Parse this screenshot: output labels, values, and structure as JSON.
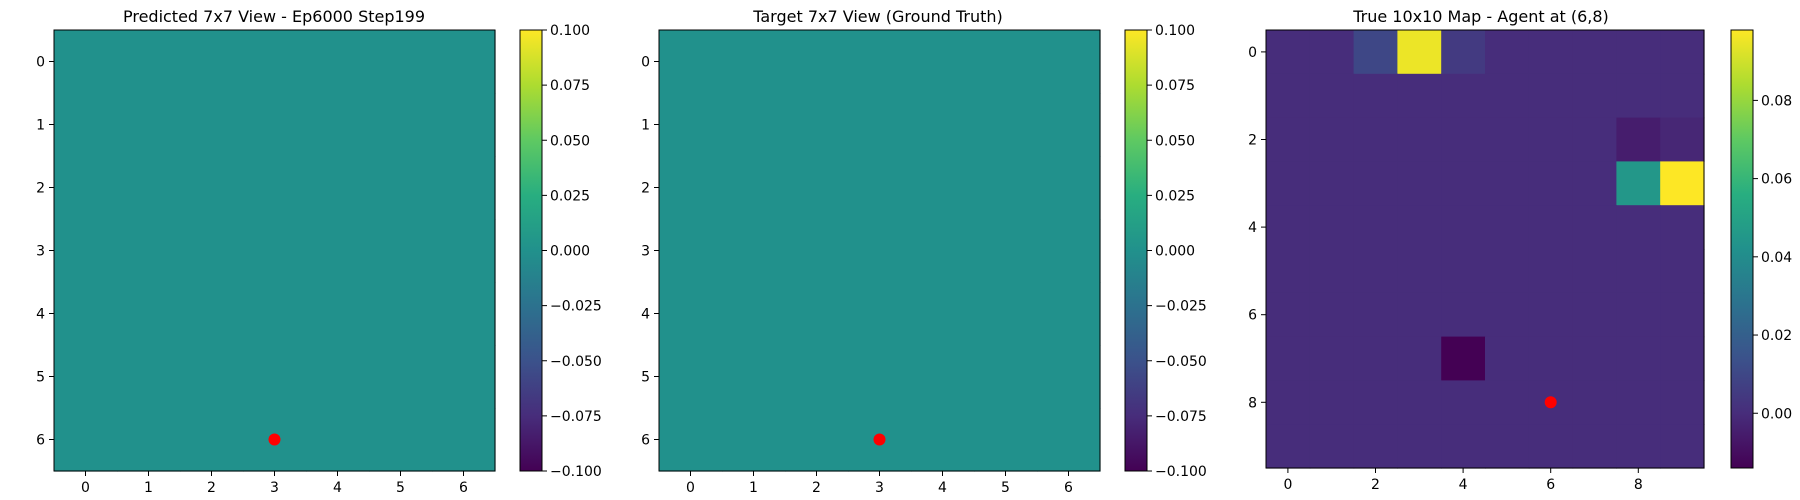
{
  "chart_data": [
    {
      "type": "heatmap",
      "title": "Predicted 7x7 View - Ep6000 Step199",
      "rows": 7,
      "cols": 7,
      "xticks": [
        0,
        1,
        2,
        3,
        4,
        5,
        6
      ],
      "yticks": [
        0,
        1,
        2,
        3,
        4,
        5,
        6
      ],
      "grid": [
        [
          0,
          0,
          0,
          0,
          0,
          0,
          0
        ],
        [
          0,
          0,
          0,
          0,
          0,
          0,
          0
        ],
        [
          0,
          0,
          0,
          0,
          0,
          0,
          0
        ],
        [
          0,
          0,
          0,
          0,
          0,
          0,
          0
        ],
        [
          0,
          0,
          0,
          0,
          0,
          0,
          0
        ],
        [
          0,
          0,
          0,
          0,
          0,
          0,
          0
        ],
        [
          0,
          0,
          0,
          0,
          0,
          0,
          0
        ]
      ],
      "vmin": -0.1,
      "vmax": 0.1,
      "colorbar_ticks": [
        0.1,
        0.075,
        0.05,
        0.025,
        0.0,
        -0.025,
        -0.05,
        -0.075,
        -0.1
      ],
      "colorbar_labels": [
        "0.100",
        "0.075",
        "0.050",
        "0.025",
        "0.000",
        "−0.025",
        "−0.050",
        "−0.075",
        "−0.100"
      ],
      "marker": {
        "x": 3,
        "y": 6,
        "color": "#ff0000"
      }
    },
    {
      "type": "heatmap",
      "title": "Target 7x7 View (Ground Truth)",
      "rows": 7,
      "cols": 7,
      "xticks": [
        0,
        1,
        2,
        3,
        4,
        5,
        6
      ],
      "yticks": [
        0,
        1,
        2,
        3,
        4,
        5,
        6
      ],
      "grid": [
        [
          0,
          0,
          0,
          0,
          0,
          0,
          0
        ],
        [
          0,
          0,
          0,
          0,
          0,
          0,
          0
        ],
        [
          0,
          0,
          0,
          0,
          0,
          0,
          0
        ],
        [
          0,
          0,
          0,
          0,
          0,
          0,
          0
        ],
        [
          0,
          0,
          0,
          0,
          0,
          0,
          0
        ],
        [
          0,
          0,
          0,
          0,
          0,
          0,
          0
        ],
        [
          0,
          0,
          0,
          0,
          0,
          0,
          0
        ]
      ],
      "vmin": -0.1,
      "vmax": 0.1,
      "colorbar_ticks": [
        0.1,
        0.075,
        0.05,
        0.025,
        0.0,
        -0.025,
        -0.05,
        -0.075,
        -0.1
      ],
      "colorbar_labels": [
        "0.100",
        "0.075",
        "0.050",
        "0.025",
        "0.000",
        "−0.025",
        "−0.050",
        "−0.075",
        "−0.100"
      ],
      "marker": {
        "x": 3,
        "y": 6,
        "color": "#ff0000"
      }
    },
    {
      "type": "heatmap",
      "title": "True 10x10 Map - Agent at (6,8)",
      "rows": 10,
      "cols": 10,
      "xticks": [
        0,
        2,
        4,
        6,
        8
      ],
      "yticks": [
        0,
        2,
        4,
        6,
        8
      ],
      "grid": [
        [
          0,
          0,
          0.01,
          0.095,
          0.005,
          0,
          0,
          0,
          0,
          0
        ],
        [
          0,
          0,
          0,
          0,
          0,
          0,
          0,
          0,
          0,
          0
        ],
        [
          0,
          0,
          0,
          0,
          0,
          0,
          0,
          0,
          -0.005,
          -0.002
        ],
        [
          0,
          0,
          0,
          0,
          0,
          0,
          0,
          0,
          0.045,
          0.098
        ],
        [
          0,
          0,
          0,
          0,
          0,
          0,
          0,
          0,
          0,
          0
        ],
        [
          0,
          0,
          0,
          0,
          0,
          0,
          0,
          0,
          0,
          0
        ],
        [
          0,
          0,
          0,
          0,
          0,
          0,
          0,
          0,
          0,
          0
        ],
        [
          0,
          0,
          0,
          0,
          -0.014,
          0,
          0,
          0,
          0,
          0
        ],
        [
          0,
          0,
          0,
          0,
          0,
          0,
          0,
          0,
          0,
          0
        ],
        [
          0,
          0,
          0,
          0,
          0,
          0,
          0,
          0,
          0,
          0
        ]
      ],
      "vmin": -0.014,
      "vmax": 0.098,
      "colorbar_ticks": [
        0.08,
        0.06,
        0.04,
        0.02,
        0.0
      ],
      "colorbar_labels": [
        "0.08",
        "0.06",
        "0.04",
        "0.02",
        "0.00"
      ],
      "marker": {
        "x": 6,
        "y": 8,
        "color": "#ff0000"
      }
    }
  ]
}
